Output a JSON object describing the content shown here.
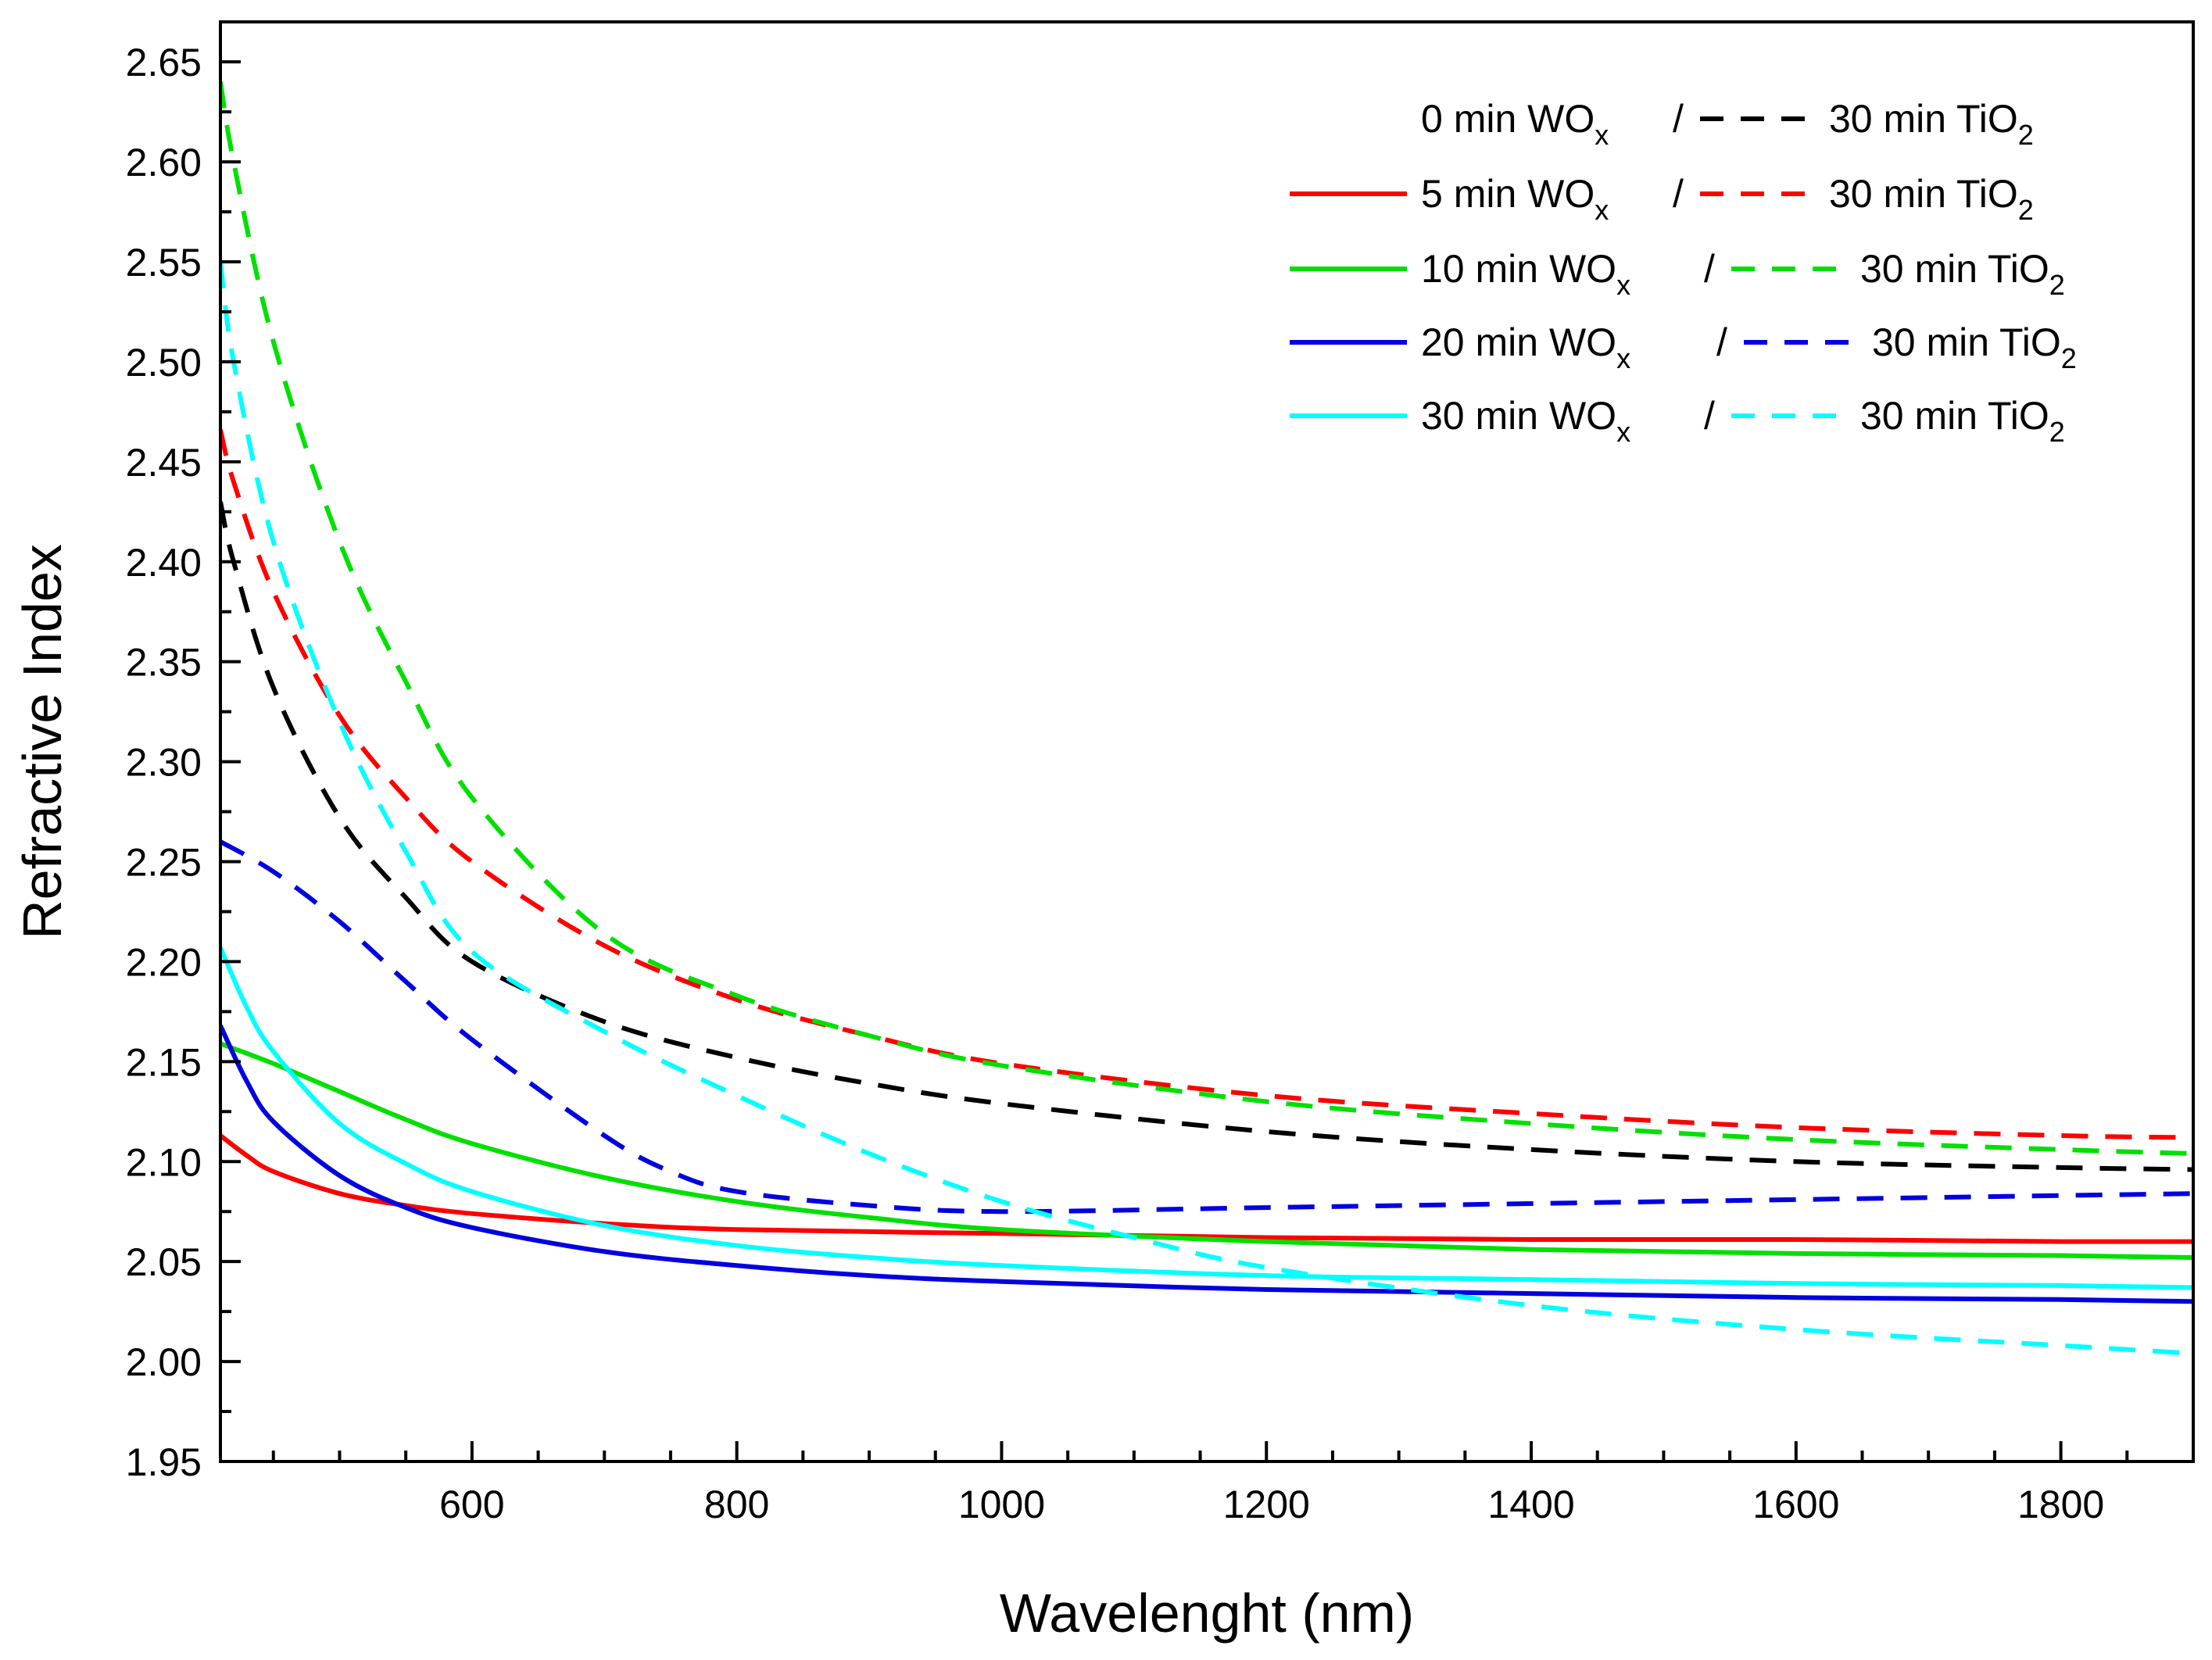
{
  "chart_data": {
    "type": "line",
    "xlabel": "Wavelenght (nm)",
    "ylabel": "Refractive Index",
    "xlim": [
      410,
      1900
    ],
    "ylim": [
      1.95,
      2.67
    ],
    "x_ticks": [
      600,
      800,
      1000,
      1200,
      1400,
      1600,
      1800
    ],
    "x_tick_labels": [
      "600",
      "800",
      "1000",
      "1200",
      "1400",
      "1600",
      "1800"
    ],
    "y_ticks": [
      1.95,
      2.0,
      2.05,
      2.1,
      2.15,
      2.2,
      2.25,
      2.3,
      2.35,
      2.4,
      2.45,
      2.5,
      2.55,
      2.6,
      2.65
    ],
    "y_tick_labels": [
      "1.95",
      "2.00",
      "2.05",
      "2.10",
      "2.15",
      "2.20",
      "2.25",
      "2.30",
      "2.35",
      "2.40",
      "2.45",
      "2.50",
      "2.55",
      "2.60",
      "2.65"
    ],
    "grid": false,
    "legend_position": "top-right",
    "legend": [
      {
        "wo_text": "0 min WO",
        "wo_sub": "x",
        "slash": "/",
        "tio_text": "30 min TiO",
        "tio_sub": "2",
        "color": "#000000",
        "has_wo_line": false
      },
      {
        "wo_text": "5 min WO",
        "wo_sub": "x",
        "slash": "/",
        "tio_text": "30 min TiO",
        "tio_sub": "2",
        "color": "#ff0000",
        "has_wo_line": true
      },
      {
        "wo_text": "10 min WO",
        "wo_sub": "x",
        "slash": "/",
        "tio_text": "30 min TiO",
        "tio_sub": "2",
        "color": "#00e000",
        "has_wo_line": true
      },
      {
        "wo_text": "20 min WO",
        "wo_sub": "x",
        "slash": "/",
        "tio_text": "30 min TiO",
        "tio_sub": "2",
        "color": "#0000e0",
        "has_wo_line": true
      },
      {
        "wo_text": "30 min WO",
        "wo_sub": "x",
        "slash": "/",
        "tio_text": "30 min TiO",
        "tio_sub": "2",
        "color": "#00ffff",
        "has_wo_line": true
      }
    ],
    "series": [
      {
        "name": "5 min WOx",
        "color": "#ff0000",
        "dash": false,
        "x": [
          410,
          430,
          450,
          500,
          550,
          600,
          700,
          800,
          1000,
          1200,
          1400,
          1600,
          1800,
          1900
        ],
        "y": [
          2.113,
          2.103,
          2.095,
          2.084,
          2.078,
          2.074,
          2.069,
          2.066,
          2.064,
          2.062,
          2.061,
          2.061,
          2.06,
          2.06
        ]
      },
      {
        "name": "10 min WOx",
        "color": "#00e000",
        "dash": false,
        "x": [
          410,
          450,
          500,
          550,
          600,
          700,
          800,
          900,
          1000,
          1200,
          1400,
          1600,
          1800,
          1900
        ],
        "y": [
          2.159,
          2.149,
          2.135,
          2.121,
          2.109,
          2.092,
          2.08,
          2.072,
          2.066,
          2.06,
          2.056,
          2.054,
          2.053,
          2.052
        ]
      },
      {
        "name": "20 min WOx",
        "color": "#0000e0",
        "dash": false,
        "x": [
          410,
          430,
          450,
          500,
          550,
          600,
          700,
          800,
          900,
          1000,
          1200,
          1400,
          1600,
          1800,
          1900
        ],
        "y": [
          2.168,
          2.14,
          2.12,
          2.093,
          2.077,
          2.067,
          2.055,
          2.048,
          2.043,
          2.04,
          2.036,
          2.034,
          2.032,
          2.031,
          2.03
        ]
      },
      {
        "name": "30 min WOx",
        "color": "#00ffff",
        "dash": false,
        "x": [
          410,
          430,
          450,
          500,
          550,
          600,
          700,
          800,
          900,
          1000,
          1200,
          1400,
          1600,
          1800,
          1900
        ],
        "y": [
          2.207,
          2.177,
          2.155,
          2.119,
          2.099,
          2.085,
          2.068,
          2.058,
          2.052,
          2.048,
          2.043,
          2.041,
          2.039,
          2.038,
          2.037
        ]
      },
      {
        "name": "0 min WOx / 30 min TiO2",
        "color": "#000000",
        "dash": true,
        "x": [
          410,
          420,
          450,
          500,
          550,
          600,
          700,
          800,
          900,
          1000,
          1200,
          1400,
          1600,
          1800,
          1900
        ],
        "y": [
          2.43,
          2.4,
          2.337,
          2.272,
          2.232,
          2.2,
          2.17,
          2.152,
          2.139,
          2.129,
          2.115,
          2.106,
          2.1,
          2.097,
          2.096
        ]
      },
      {
        "name": "5 min WOx / 30 min TiO2",
        "color": "#ff0000",
        "dash": true,
        "x": [
          410,
          420,
          450,
          500,
          550,
          600,
          700,
          800,
          900,
          1000,
          1200,
          1400,
          1600,
          1800,
          1900
        ],
        "y": [
          2.466,
          2.44,
          2.385,
          2.323,
          2.282,
          2.25,
          2.208,
          2.181,
          2.163,
          2.149,
          2.133,
          2.124,
          2.117,
          2.113,
          2.112
        ]
      },
      {
        "name": "10 min WOx / 30 min TiO2",
        "color": "#00e000",
        "dash": true,
        "x": [
          410,
          420,
          450,
          500,
          550,
          600,
          700,
          800,
          900,
          1000,
          1200,
          1400,
          1600,
          1800,
          1900
        ],
        "y": [
          2.64,
          2.6,
          2.51,
          2.41,
          2.34,
          2.282,
          2.214,
          2.183,
          2.163,
          2.148,
          2.13,
          2.119,
          2.111,
          2.106,
          2.104
        ]
      },
      {
        "name": "20 min WOx / 30 min TiO2",
        "color": "#0000e0",
        "dash": true,
        "x": [
          410,
          450,
          500,
          550,
          600,
          700,
          750,
          800,
          900,
          1000,
          1200,
          1400,
          1600,
          1800,
          1900
        ],
        "y": [
          2.26,
          2.245,
          2.22,
          2.19,
          2.161,
          2.113,
          2.095,
          2.085,
          2.078,
          2.075,
          2.077,
          2.079,
          2.081,
          2.083,
          2.084
        ]
      },
      {
        "name": "30 min WOx / 30 min TiO2",
        "color": "#00ffff",
        "dash": true,
        "x": [
          410,
          420,
          450,
          500,
          550,
          600,
          700,
          800,
          900,
          1000,
          1100,
          1200,
          1400,
          1600,
          1800,
          1900
        ],
        "y": [
          2.55,
          2.5,
          2.41,
          2.32,
          2.255,
          2.205,
          2.165,
          2.133,
          2.104,
          2.08,
          2.062,
          2.047,
          2.028,
          2.016,
          2.008,
          2.004
        ]
      }
    ]
  }
}
